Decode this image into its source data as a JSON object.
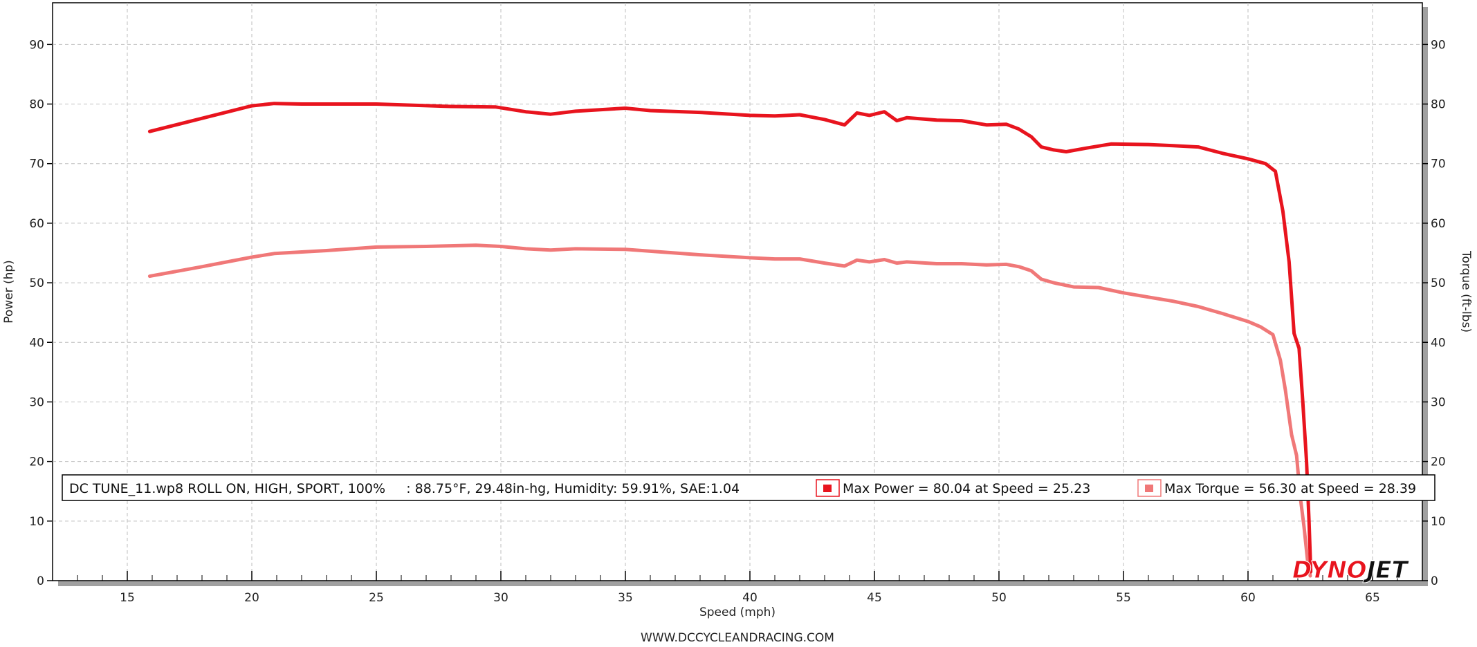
{
  "chart_data": {
    "type": "line",
    "xlabel": "Speed (mph)",
    "ylabel": "Power (hp)",
    "y2label": "Torque (ft-lbs)",
    "xlim": [
      12,
      67
    ],
    "ylim": [
      0,
      97
    ],
    "y2lim": [
      0,
      97
    ],
    "x_ticks": [
      15,
      20,
      25,
      30,
      35,
      40,
      45,
      50,
      55,
      60,
      65
    ],
    "y_ticks": [
      0,
      10,
      20,
      30,
      40,
      50,
      60,
      70,
      80,
      90
    ],
    "y2_ticks": [
      0,
      10,
      20,
      30,
      40,
      50,
      60,
      70,
      80,
      90
    ],
    "grid": true,
    "series": [
      {
        "key": "power",
        "color": "#e8141e",
        "x": [
          15.9,
          18,
          20,
          20.9,
          22,
          25,
          28,
          29.8,
          31,
          32,
          33,
          35,
          36,
          38,
          40,
          41,
          42,
          43,
          43.8,
          44.3,
          44.8,
          45.4,
          45.9,
          46.3,
          47.5,
          48.5,
          49.5,
          50.3,
          50.8,
          51.3,
          51.7,
          52.2,
          52.7,
          53.5,
          54.5,
          56,
          57,
          58,
          59,
          60,
          60.7,
          61.1,
          61.4,
          61.65,
          61.85,
          62.05,
          62.2,
          62.35,
          62.45,
          62.52
        ],
        "values": [
          75.4,
          77.6,
          79.7,
          80.1,
          80.0,
          80.0,
          79.6,
          79.5,
          78.7,
          78.3,
          78.8,
          79.3,
          78.9,
          78.6,
          78.1,
          78.0,
          78.2,
          77.4,
          76.5,
          78.5,
          78.1,
          78.7,
          77.2,
          77.7,
          77.3,
          77.2,
          76.5,
          76.6,
          75.8,
          74.5,
          72.8,
          72.3,
          72.0,
          72.6,
          73.3,
          73.2,
          73.0,
          72.8,
          71.7,
          70.8,
          70.0,
          68.7,
          62.0,
          53.5,
          41.5,
          39.0,
          30.0,
          20.0,
          10.0,
          1.5
        ]
      },
      {
        "key": "torque",
        "color": "#f07878",
        "x": [
          15.9,
          18,
          20,
          20.9,
          23,
          25,
          27,
          29,
          30,
          31,
          32,
          33,
          35,
          36,
          38,
          40,
          41,
          42,
          43,
          43.8,
          44.3,
          44.8,
          45.4,
          45.9,
          46.3,
          47.5,
          48.5,
          49.5,
          50.3,
          50.8,
          51.3,
          51.7,
          52.2,
          53,
          54,
          55,
          56,
          57,
          58,
          59,
          60,
          60.5,
          61,
          61.3,
          61.5,
          61.75,
          61.95,
          62.1,
          62.25,
          62.4,
          62.5
        ],
        "values": [
          51.1,
          52.7,
          54.3,
          54.9,
          55.4,
          56.0,
          56.1,
          56.3,
          56.1,
          55.7,
          55.5,
          55.7,
          55.6,
          55.3,
          54.7,
          54.2,
          54.0,
          54.0,
          53.3,
          52.8,
          53.8,
          53.5,
          53.9,
          53.3,
          53.5,
          53.2,
          53.2,
          53.0,
          53.1,
          52.7,
          52.0,
          50.6,
          50.0,
          49.3,
          49.2,
          48.3,
          47.6,
          46.9,
          46.0,
          44.8,
          43.5,
          42.6,
          41.3,
          37.0,
          32.0,
          24.5,
          21.0,
          14.0,
          9.0,
          3.0,
          0.8
        ]
      }
    ],
    "legend": {
      "run_info": "DC TUNE_11.wp8 ROLL ON, HIGH, SPORT, 100%     : 88.75°F, 29.48in-hg, Humidity: 59.91%, SAE:1.04",
      "power_label": "Max Power = 80.04 at Speed = 25.23",
      "torque_label": "Max Torque = 56.30 at Speed = 28.39",
      "placement": "bottom"
    }
  },
  "footer": {
    "website": "WWW.DCCYCLEANDRACING.COM"
  },
  "logo": {
    "part1": "DYNO",
    "part2": "JET",
    "color1": "#e8141e",
    "color2": "#111111"
  }
}
